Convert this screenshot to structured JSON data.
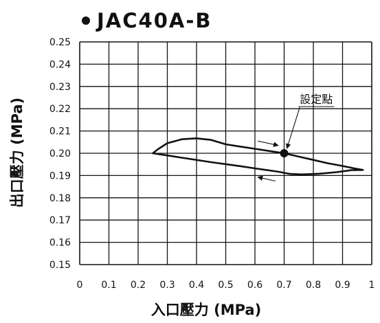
{
  "chart_data": {
    "type": "line",
    "title": "JAC40A-B",
    "xlabel": "入口壓力 (MPa)",
    "ylabel": "出口壓力 (MPa)",
    "xlim": [
      0,
      1
    ],
    "ylim": [
      0.15,
      0.25
    ],
    "grid": true,
    "x_ticks": [
      "0",
      "0.1",
      "0.2",
      "0.3",
      "0.4",
      "0.5",
      "0.6",
      "0.7",
      "0.8",
      "0.9",
      "1"
    ],
    "y_ticks": [
      "0.15",
      "0.16",
      "0.17",
      "0.18",
      "0.19",
      "0.20",
      "0.21",
      "0.22",
      "0.23",
      "0.24",
      "0.25"
    ],
    "series": [
      {
        "points": [
          [
            0.25,
            0.2
          ],
          [
            0.27,
            0.202
          ],
          [
            0.3,
            0.2045
          ],
          [
            0.35,
            0.2063
          ],
          [
            0.4,
            0.2067
          ],
          [
            0.45,
            0.206
          ],
          [
            0.5,
            0.204
          ],
          [
            0.55,
            0.203
          ],
          [
            0.6,
            0.202
          ],
          [
            0.65,
            0.201
          ],
          [
            0.7,
            0.2
          ],
          [
            0.75,
            0.1985
          ],
          [
            0.8,
            0.197
          ],
          [
            0.85,
            0.1955
          ],
          [
            0.9,
            0.1943
          ],
          [
            0.94,
            0.1932
          ],
          [
            0.97,
            0.1925
          ],
          [
            0.93,
            0.1924
          ],
          [
            0.88,
            0.1915
          ],
          [
            0.82,
            0.1908
          ],
          [
            0.76,
            0.1905
          ],
          [
            0.72,
            0.1907
          ],
          [
            0.68,
            0.1917
          ],
          [
            0.6,
            0.1932
          ],
          [
            0.55,
            0.1942
          ],
          [
            0.45,
            0.196
          ],
          [
            0.35,
            0.198
          ],
          [
            0.3,
            0.199
          ],
          [
            0.25,
            0.2
          ]
        ]
      }
    ],
    "set_point": {
      "x": 0.7,
      "y": 0.2
    },
    "annotations": [
      {
        "text": "設定點",
        "x": 0.81,
        "y": 0.2225
      }
    ],
    "direction_arrows": [
      {
        "from": [
          0.61,
          0.2055
        ],
        "to": [
          0.68,
          0.2035
        ]
      },
      {
        "from": [
          0.67,
          0.1875
        ],
        "to": [
          0.61,
          0.1893
        ]
      }
    ]
  }
}
